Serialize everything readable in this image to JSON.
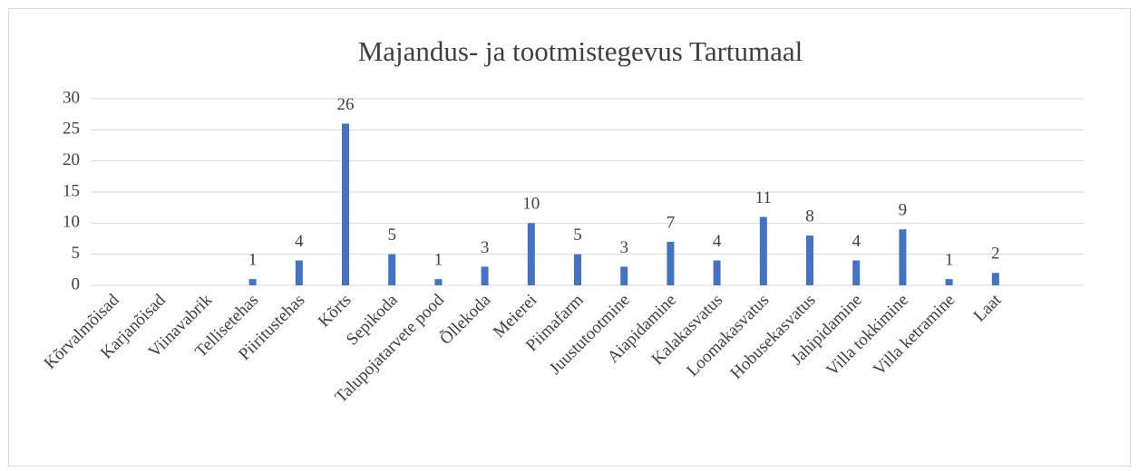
{
  "chart_data": {
    "type": "bar",
    "title": "Majandus- ja tootmistegevus Tartumaal",
    "categories": [
      "Kõrvalmõisad",
      "Karjanõisad",
      "Viinavabrik",
      "Tellisetehas",
      "Piiritustehas",
      "Kõrts",
      "Sepikoda",
      "Talupojatarvete pood",
      "Õllekoda",
      "Meierei",
      "Piimafarm",
      "Juustutootmine",
      "Aiapidamine",
      "Kalakasvatus",
      "Loomakasvatus",
      "Hobusekasvatus",
      "Jahipidamine",
      "Villa tokkimine",
      "Villa ketramine",
      "Laat"
    ],
    "values": [
      0,
      0,
      0,
      1,
      4,
      26,
      5,
      1,
      3,
      10,
      5,
      3,
      7,
      4,
      11,
      8,
      4,
      9,
      1,
      2
    ],
    "color": "#4472c4",
    "ylim": [
      0,
      30
    ],
    "yticks": [
      0,
      5,
      10,
      15,
      20,
      25,
      30
    ],
    "grid": true
  }
}
